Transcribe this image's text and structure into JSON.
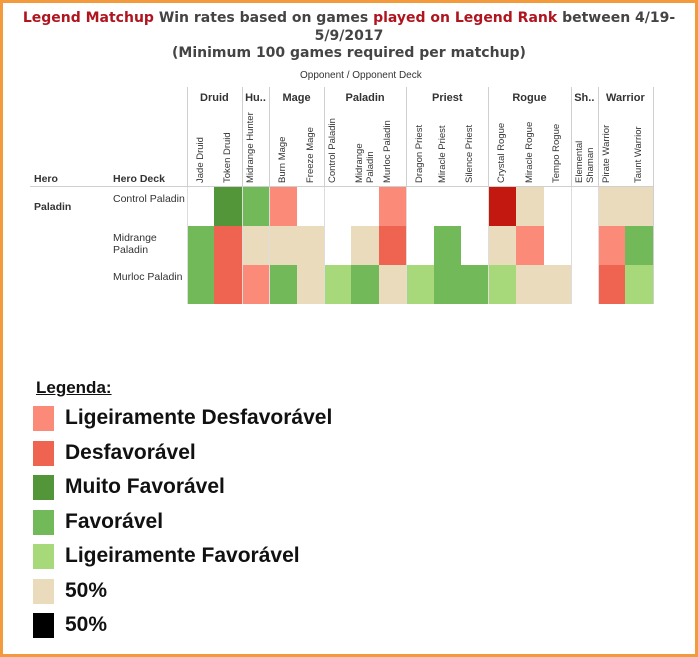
{
  "chart_data": {
    "type": "heatmap",
    "title_parts": [
      "Legend Matchup",
      "Win rates based on games",
      "played on Legend Rank",
      "between 4/19-5/9/2017"
    ],
    "subtitle": "(Minimum 100 games required per matchup)",
    "column_axis_label": "Opponent  /  Opponent Deck",
    "row_headers": [
      "Hero",
      "Hero Deck"
    ],
    "column_groups": [
      {
        "name": "Druid",
        "decks": [
          "Jade Druid",
          "Token Druid"
        ]
      },
      {
        "name": "Hu..",
        "decks": [
          "Midrange Hunter"
        ]
      },
      {
        "name": "Mage",
        "decks": [
          "Burn Mage",
          "Freeze Mage"
        ]
      },
      {
        "name": "Paladin",
        "decks": [
          "Control Paladin",
          "Midrange Paladin",
          "Murloc Paladin"
        ]
      },
      {
        "name": "Priest",
        "decks": [
          "Dragon Priest",
          "Miracle Priest",
          "Silence Priest"
        ]
      },
      {
        "name": "Rogue",
        "decks": [
          "Crystal Rogue",
          "Miracle Rogue",
          "Tempo Rogue"
        ]
      },
      {
        "name": "Sh..",
        "decks": [
          "Elemental Shaman"
        ]
      },
      {
        "name": "Warrior",
        "decks": [
          "Pirate Warrior",
          "Taunt Warrior"
        ]
      }
    ],
    "row_groups": [
      {
        "name": "Paladin",
        "decks": [
          "Control Paladin",
          "Midrange Paladin",
          "Murloc Paladin"
        ]
      }
    ],
    "categories_legend": {
      "SD": "Ligeiramente Desfavorável",
      "D": "Desfavorável",
      "MF": "Muito Favorável",
      "F": "Favorável",
      "SF": "Ligeiramente Favorável",
      "E": "50%",
      "X": "extremely unfavorable (dark red)"
    },
    "cells": [
      [
        null,
        "MF",
        "F",
        "SD",
        null,
        null,
        null,
        "SD",
        null,
        null,
        null,
        "X",
        "E",
        null,
        null,
        "E",
        "E"
      ],
      [
        "F",
        "D",
        "E",
        "E",
        "E",
        null,
        "E",
        "D",
        null,
        "F",
        null,
        "E",
        "SD",
        null,
        null,
        "SD",
        "F"
      ],
      [
        "F",
        "D",
        "SD",
        "F",
        "E",
        "SF",
        "F",
        "E",
        "SF",
        "F",
        "F",
        "SF",
        "E",
        "E",
        null,
        "D",
        "SF"
      ]
    ]
  },
  "colors": {
    "SD": "#fb8b78",
    "D": "#ef6450",
    "MF": "#53963a",
    "F": "#72b95a",
    "SF": "#a7d879",
    "E": "#eadbbd",
    "X": "#c21810",
    "BLACK": "#000000"
  },
  "legend": {
    "title": "Legenda:",
    "items": [
      {
        "label": "Ligeiramente Desfavorável",
        "color": "#fb8b78"
      },
      {
        "label": "Desfavorável",
        "color": "#ef6450"
      },
      {
        "label": "Muito Favorável",
        "color": "#53963a"
      },
      {
        "label": "Favorável",
        "color": "#72b95a"
      },
      {
        "label": "Ligeiramente Favorável",
        "color": "#a7d879"
      },
      {
        "label": "50%",
        "color": "#eadbbd"
      },
      {
        "label": "50%",
        "color": "#000000"
      }
    ]
  }
}
